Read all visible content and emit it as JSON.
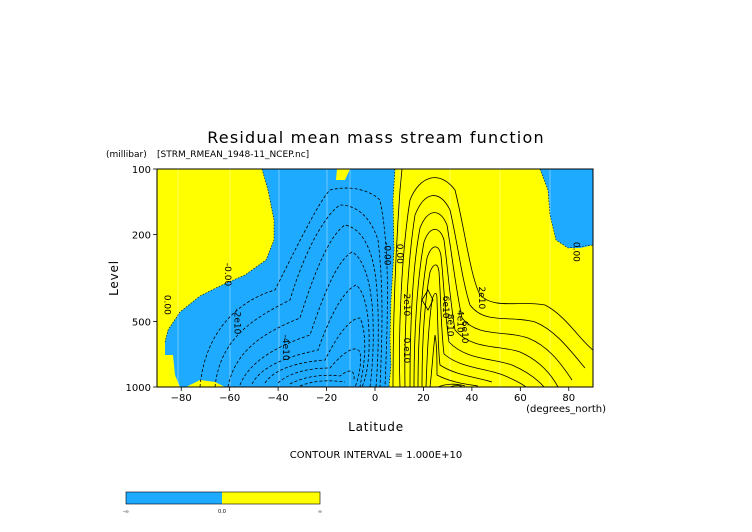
{
  "chart_data": {
    "type": "contour",
    "title": "Residual mean mass stream function",
    "subtitle": "[STRM_RMEAN_1948-11_NCEP.nc]",
    "xlabel": "Latitude",
    "xunit": "(degrees_north)",
    "ylabel": "Level",
    "yunit": "(millibar)",
    "xlim": [
      -90,
      90
    ],
    "ylim": [
      1000,
      100
    ],
    "y_scale": "log",
    "x_ticks": [
      -80,
      -60,
      -40,
      -20,
      0,
      20,
      40,
      60,
      80
    ],
    "x_tick_labels": [
      "−80",
      "−60",
      "−40",
      "−20",
      "0",
      "20",
      "40",
      "60",
      "80"
    ],
    "y_ticks": [
      100,
      200,
      500,
      1000
    ],
    "y_tick_labels": [
      "100",
      "200",
      "500",
      "1000"
    ],
    "contour_interval_text": "CONTOUR INTERVAL = 1.000E+10",
    "fill_colors": {
      "negative": "#1eaaff",
      "positive": "#ffff00"
    },
    "contour_labels": [
      {
        "text": "0.00",
        "x": -87,
        "p": 420
      },
      {
        "text": "-0.00",
        "x": -62,
        "p": 305
      },
      {
        "text": "-2e10",
        "x": -58,
        "p": 500
      },
      {
        "text": "-4e10",
        "x": -38,
        "p": 660
      },
      {
        "text": "-0.00",
        "x": 4,
        "p": 245
      },
      {
        "text": "0.00",
        "x": 9,
        "p": 245
      },
      {
        "text": "2e10",
        "x": 12,
        "p": 420
      },
      {
        "text": "0.e10",
        "x": 12,
        "p": 680
      },
      {
        "text": "6e10",
        "x": 28,
        "p": 430
      },
      {
        "text": "8e10",
        "x": 30,
        "p": 520
      },
      {
        "text": "4e10",
        "x": 34,
        "p": 500
      },
      {
        "text": "6e10",
        "x": 36,
        "p": 560
      },
      {
        "text": "2e10",
        "x": 43,
        "p": 390
      },
      {
        "text": "0.00",
        "x": 82,
        "p": 240
      }
    ],
    "colorbar": {
      "labels": [
        "-∞",
        "0.0",
        "∞"
      ]
    }
  }
}
